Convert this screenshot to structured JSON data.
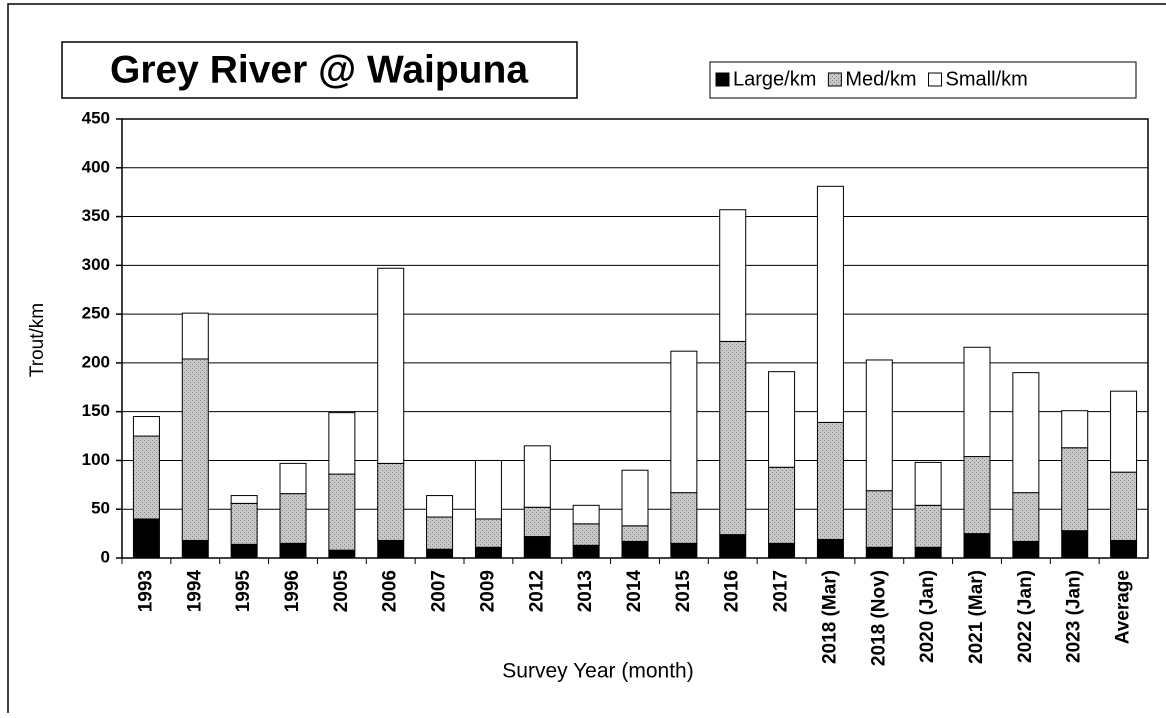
{
  "chart_data": {
    "type": "stacked_bar",
    "title": "Grey River @ Waipuna",
    "x_label": "Survey Year (month)",
    "y_label": "Trout/km",
    "categories": [
      "1993",
      "1994",
      "1995",
      "1996",
      "2005",
      "2006",
      "2007",
      "2009",
      "2012",
      "2013",
      "2014",
      "2015",
      "2016",
      "2017",
      "2018 (Mar)",
      "2018 (Nov)",
      "2020 (Jan)",
      "2021 (Mar)",
      "2022 (Jan)",
      "2023 (Jan)",
      "Average"
    ],
    "series": [
      {
        "name": "Large/km",
        "color": "#000000",
        "values": [
          40,
          18,
          14,
          15,
          8,
          18,
          9,
          11,
          22,
          13,
          17,
          15,
          24,
          15,
          19,
          11,
          11,
          25,
          17,
          28,
          18
        ]
      },
      {
        "name": "Med/km",
        "color": "#c0c0c0",
        "values": [
          85,
          186,
          42,
          51,
          78,
          79,
          33,
          29,
          30,
          22,
          16,
          52,
          198,
          78,
          120,
          58,
          43,
          79,
          50,
          85,
          70
        ]
      },
      {
        "name": "Small/km",
        "color": "#ffffff",
        "values": [
          20,
          47,
          8,
          31,
          63,
          200,
          22,
          60,
          63,
          19,
          57,
          145,
          135,
          98,
          242,
          134,
          44,
          112,
          123,
          38,
          83
        ]
      }
    ],
    "ylim": [
      0,
      450
    ],
    "yticks": [
      0,
      50,
      100,
      150,
      200,
      250,
      300,
      350,
      400,
      450
    ],
    "grid": true
  }
}
